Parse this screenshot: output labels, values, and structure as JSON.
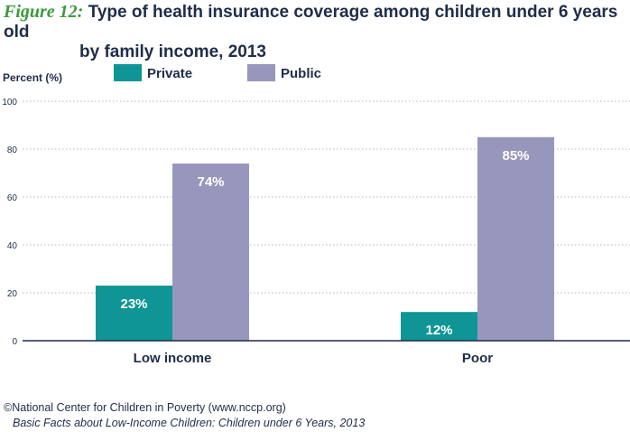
{
  "figure": {
    "label": "Figure 12:",
    "title_line1": "Type of health insurance coverage among children under 6 years old",
    "title_line2": "by family income, 2013"
  },
  "source": {
    "line1": "©National Center for Children in Poverty (www.nccp.org)",
    "line2": "Basic Facts about Low-Income Children: Children under 6 Years, 2013"
  },
  "colors": {
    "private": "#0f9596",
    "public": "#9797bd",
    "axis": "#1f2d4a",
    "grid": "#b5b5c4",
    "figure_label": "#3a9a3c"
  },
  "chart_data": {
    "type": "bar",
    "ylabel": "Percent (%)",
    "xlabel": "",
    "ylim": [
      0,
      100
    ],
    "yticks": [
      0,
      20,
      40,
      60,
      80,
      100
    ],
    "grid": true,
    "legend_position": "top",
    "categories": [
      "Low income",
      "Poor"
    ],
    "series": [
      {
        "name": "Private",
        "values": [
          23,
          12
        ],
        "labels": [
          "23%",
          "12%"
        ]
      },
      {
        "name": "Public",
        "values": [
          74,
          85
        ],
        "labels": [
          "74%",
          "85%"
        ]
      }
    ]
  }
}
